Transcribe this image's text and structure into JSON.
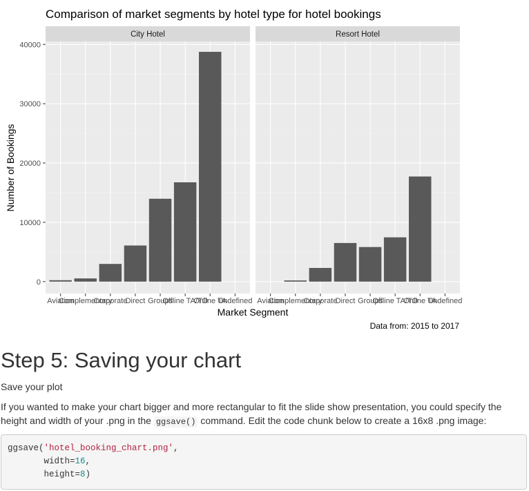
{
  "chart_data": {
    "type": "bar",
    "title": "Comparison of market segments by hotel type for hotel bookings",
    "xlabel": "Market Segment",
    "ylabel": "Number of Bookings",
    "caption": "Data from: 2015 to 2017",
    "ylim": [
      -2000,
      40500
    ],
    "yticks": [
      0,
      10000,
      20000,
      30000,
      40000
    ],
    "ytick_labels": [
      "0",
      "10000",
      "20000",
      "30000",
      "40000"
    ],
    "grid": true,
    "bar_color": "#595959",
    "panel_background": "#ebebeb",
    "strip_background": "#d9d9d9",
    "categories": [
      "Aviation",
      "Complementary",
      "Corporate",
      "Direct",
      "Groups",
      "Offline TA/TO",
      "Online TA",
      "Undefined"
    ],
    "facets": [
      {
        "name": "City Hotel",
        "values": [
          237,
          542,
          2986,
          6093,
          13975,
          16747,
          38748,
          2
        ]
      },
      {
        "name": "Resort Hotel",
        "values": [
          0,
          201,
          2309,
          6513,
          5836,
          7472,
          17729,
          0
        ]
      }
    ]
  },
  "content": {
    "heading": "Step 5: Saving your chart",
    "save_plot": "Save your plot",
    "instructions_before": "If you wanted to make your chart bigger and more rectangular to fit the slide show presentation, you could specify the height and width of your .png in the ",
    "instructions_code": "ggsave()",
    "instructions_after": " command. Edit the code chunk below to create a 16x8 .png image:",
    "code_lines": [
      {
        "plain": "ggsave(",
        "str": "'hotel_booking_chart.png'",
        "tail": ","
      },
      {
        "plain": "       width=",
        "num": "16",
        "tail": ","
      },
      {
        "plain": "       height=",
        "num": "8",
        "tail": ")"
      }
    ]
  }
}
